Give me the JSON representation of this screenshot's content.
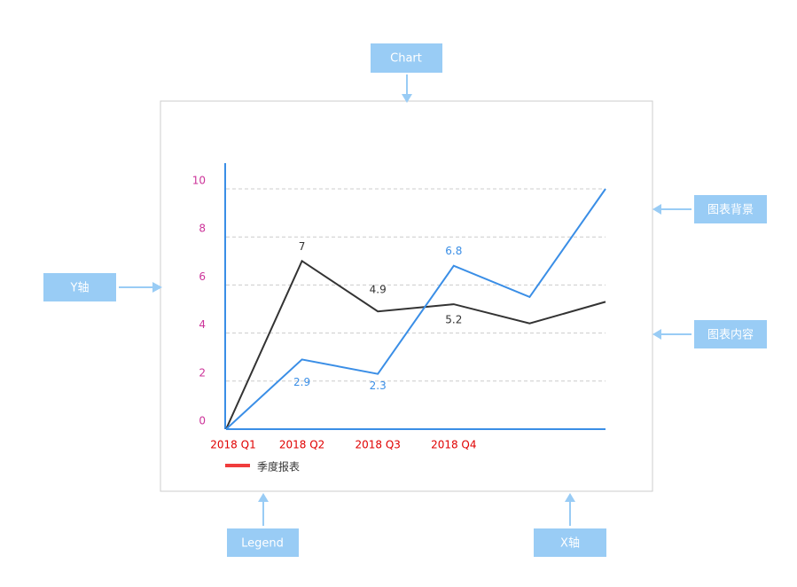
{
  "callouts": [
    "Chart",
    "图表背景",
    "Y轴",
    "图表内容",
    "Legend",
    "X轴"
  ],
  "chart": {
    "type": "line",
    "categories": [
      "2018 Q1",
      "2018 Q2",
      "2018 Q3",
      "2018 Q4",
      null,
      null
    ],
    "series": [
      {
        "color": "#333333",
        "values": [
          0,
          7,
          4.9,
          5.2,
          4.4,
          5.3
        ],
        "value_labels": [
          null,
          "7",
          "4.9",
          "5.2",
          null,
          null
        ]
      },
      {
        "color": "#3a8ee6",
        "values": [
          0,
          2.9,
          2.3,
          6.8,
          5.5,
          10
        ],
        "value_labels": [
          null,
          "2.9",
          "2.3",
          "6.8",
          null,
          null
        ]
      }
    ],
    "ylim": [
      0,
      10
    ],
    "yticks": [
      0,
      2,
      4,
      6,
      8,
      10
    ],
    "grid": true,
    "legend": {
      "label": "季度报表",
      "color": "#f03c3c"
    }
  }
}
